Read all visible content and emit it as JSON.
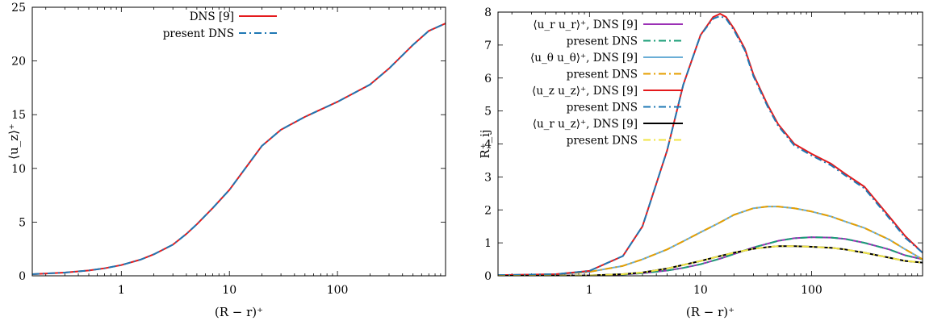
{
  "chart_data": [
    {
      "type": "line",
      "x_scale": "log",
      "xlim": [
        0.15,
        1000
      ],
      "ylim": [
        0,
        25
      ],
      "xlabel": "(R − r)⁺",
      "ylabel": "⟨u_z⟩⁺",
      "xticks": [
        1,
        10,
        100
      ],
      "xtick_labels": [
        "1",
        "10",
        "100"
      ],
      "yticks": [
        0,
        5,
        10,
        15,
        20,
        25
      ],
      "ytick_labels": [
        "0",
        "5",
        "10",
        "15",
        "20",
        "25"
      ],
      "grid": false,
      "legend_position": "top-center",
      "series": [
        {
          "name": "DNS [9]",
          "color": "#e41a1c",
          "style": "solid",
          "x": [
            0.15,
            0.3,
            0.5,
            0.7,
            1,
            1.5,
            2,
            3,
            4,
            5,
            7,
            10,
            15,
            20,
            30,
            50,
            100,
            200,
            300,
            500,
            700,
            1000
          ],
          "y": [
            0.15,
            0.3,
            0.5,
            0.7,
            1.0,
            1.5,
            2.0,
            2.9,
            3.9,
            4.8,
            6.3,
            8.0,
            10.4,
            12.1,
            13.6,
            14.8,
            16.2,
            17.8,
            19.3,
            21.5,
            22.8,
            23.5
          ]
        },
        {
          "name": "present DNS",
          "color": "#1f78b4",
          "style": "dashdot",
          "x": [
            0.15,
            0.3,
            0.5,
            0.7,
            1,
            1.5,
            2,
            3,
            4,
            5,
            7,
            10,
            15,
            20,
            30,
            50,
            100,
            200,
            300,
            500,
            700,
            1000
          ],
          "y": [
            0.15,
            0.3,
            0.5,
            0.7,
            1.0,
            1.5,
            2.0,
            2.9,
            3.9,
            4.8,
            6.3,
            8.0,
            10.4,
            12.1,
            13.6,
            14.8,
            16.2,
            17.8,
            19.3,
            21.5,
            22.8,
            23.5
          ]
        }
      ]
    },
    {
      "type": "line",
      "x_scale": "log",
      "xlim": [
        0.15,
        1000
      ],
      "ylim": [
        0,
        8
      ],
      "xlabel": "(R − r)⁺",
      "ylabel": "R⁺_ij",
      "xticks": [
        1,
        10,
        100
      ],
      "xtick_labels": [
        "1",
        "10",
        "100"
      ],
      "yticks": [
        0,
        1,
        2,
        3,
        4,
        5,
        6,
        7,
        8
      ],
      "ytick_labels": [
        "0",
        "1",
        "2",
        "3",
        "4",
        "5",
        "6",
        "7",
        "8"
      ],
      "grid": false,
      "legend_position": "top-left",
      "series": [
        {
          "name": "⟨u_r u_r⟩⁺, DNS [9]",
          "color": "#9b30b5",
          "style": "solid",
          "x": [
            0.15,
            0.5,
            1,
            2,
            3,
            5,
            7,
            10,
            15,
            20,
            30,
            50,
            70,
            100,
            150,
            200,
            300,
            500,
            700,
            1000
          ],
          "y": [
            0,
            0.003,
            0.012,
            0.04,
            0.08,
            0.16,
            0.24,
            0.35,
            0.52,
            0.66,
            0.86,
            1.06,
            1.14,
            1.17,
            1.16,
            1.12,
            1.0,
            0.8,
            0.62,
            0.5
          ]
        },
        {
          "name": "present DNS",
          "color": "#1a9e77",
          "style": "dashdot",
          "x": [
            0.15,
            0.5,
            1,
            2,
            3,
            5,
            7,
            10,
            15,
            20,
            30,
            50,
            70,
            100,
            150,
            200,
            300,
            500,
            700,
            1000
          ],
          "y": [
            0,
            0.003,
            0.012,
            0.04,
            0.08,
            0.16,
            0.24,
            0.35,
            0.52,
            0.66,
            0.86,
            1.06,
            1.14,
            1.17,
            1.16,
            1.12,
            1.0,
            0.8,
            0.62,
            0.5
          ]
        },
        {
          "name": "⟨u_θ u_θ⟩⁺, DNS [9]",
          "color": "#6baed6",
          "style": "solid",
          "x": [
            0.15,
            0.5,
            1,
            2,
            3,
            5,
            7,
            10,
            15,
            20,
            30,
            40,
            50,
            70,
            100,
            150,
            200,
            300,
            500,
            700,
            1000
          ],
          "y": [
            0.01,
            0.05,
            0.12,
            0.3,
            0.5,
            0.8,
            1.05,
            1.32,
            1.62,
            1.85,
            2.05,
            2.1,
            2.1,
            2.05,
            1.95,
            1.8,
            1.65,
            1.45,
            1.1,
            0.8,
            0.5
          ]
        },
        {
          "name": "present DNS",
          "color": "#e69f00",
          "style": "dashdot",
          "x": [
            0.15,
            0.5,
            1,
            2,
            3,
            5,
            7,
            10,
            15,
            20,
            30,
            40,
            50,
            70,
            100,
            150,
            200,
            300,
            500,
            700,
            1000
          ],
          "y": [
            0.01,
            0.05,
            0.12,
            0.3,
            0.5,
            0.8,
            1.05,
            1.32,
            1.62,
            1.85,
            2.05,
            2.1,
            2.1,
            2.05,
            1.95,
            1.8,
            1.65,
            1.45,
            1.1,
            0.8,
            0.5
          ]
        },
        {
          "name": "⟨u_z u_z⟩⁺, DNS [9]",
          "color": "#e41a1c",
          "style": "solid",
          "x": [
            0.15,
            0.5,
            1,
            2,
            3,
            5,
            7,
            10,
            13,
            15,
            17,
            20,
            25,
            30,
            40,
            50,
            70,
            100,
            150,
            200,
            300,
            500,
            700,
            1000
          ],
          "y": [
            0.02,
            0.05,
            0.15,
            0.6,
            1.5,
            3.8,
            5.8,
            7.3,
            7.85,
            7.95,
            7.85,
            7.5,
            6.9,
            6.1,
            5.2,
            4.6,
            4.0,
            3.7,
            3.4,
            3.1,
            2.7,
            1.8,
            1.2,
            0.7
          ]
        },
        {
          "name": "present DNS",
          "color": "#1f78b4",
          "style": "dashdot",
          "x": [
            0.15,
            0.5,
            1,
            2,
            3,
            5,
            7,
            10,
            13,
            15,
            17,
            20,
            25,
            30,
            40,
            50,
            70,
            100,
            150,
            200,
            300,
            500,
            700,
            1000
          ],
          "y": [
            0.02,
            0.05,
            0.15,
            0.6,
            1.5,
            3.8,
            5.8,
            7.3,
            7.8,
            7.88,
            7.8,
            7.45,
            6.85,
            6.05,
            5.15,
            4.55,
            3.95,
            3.65,
            3.35,
            3.05,
            2.65,
            1.75,
            1.15,
            0.7
          ]
        },
        {
          "name": "⟨u_r u_z⟩⁺, DNS [9]",
          "color": "#000000",
          "style": "solid",
          "x": [
            0.15,
            0.5,
            1,
            2,
            3,
            5,
            7,
            10,
            15,
            20,
            30,
            40,
            50,
            70,
            100,
            150,
            200,
            300,
            500,
            700,
            1000
          ],
          "y": [
            0,
            0.002,
            0.01,
            0.05,
            0.1,
            0.22,
            0.33,
            0.45,
            0.6,
            0.7,
            0.82,
            0.87,
            0.9,
            0.9,
            0.88,
            0.85,
            0.8,
            0.7,
            0.55,
            0.45,
            0.4
          ]
        },
        {
          "name": "present DNS",
          "color": "#f0e442",
          "style": "dashdot",
          "x": [
            0.15,
            0.5,
            1,
            2,
            3,
            5,
            7,
            10,
            15,
            20,
            30,
            40,
            50,
            70,
            100,
            150,
            200,
            300,
            500,
            700,
            1000
          ],
          "y": [
            0,
            0.002,
            0.01,
            0.05,
            0.1,
            0.22,
            0.33,
            0.45,
            0.6,
            0.7,
            0.82,
            0.87,
            0.9,
            0.9,
            0.88,
            0.85,
            0.8,
            0.7,
            0.55,
            0.45,
            0.4
          ]
        }
      ]
    }
  ]
}
